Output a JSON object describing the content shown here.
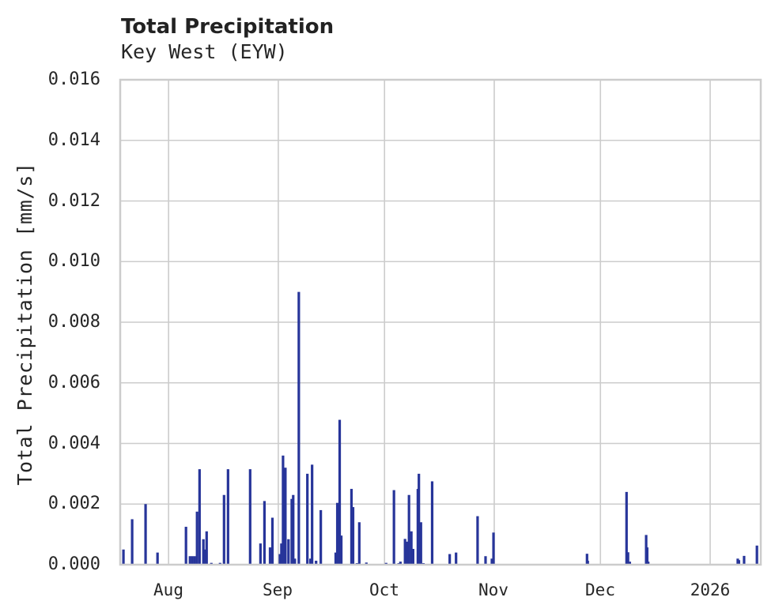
{
  "chart_data": {
    "type": "bar",
    "title": "Total Precipitation",
    "subtitle": "Key West (EYW)",
    "xlabel": "",
    "ylabel": "Total Precipitation [mm/s]",
    "ylim": [
      0,
      0.016
    ],
    "xlim": [
      "2025-07-18T08:00",
      "2026-01-15T07:00"
    ],
    "grid": true,
    "legend": null,
    "color": "#27359a",
    "grid_color": "#cccccc",
    "y_ticks": [
      "0.000",
      "0.002",
      "0.004",
      "0.006",
      "0.008",
      "0.010",
      "0.012",
      "0.014",
      "0.016"
    ],
    "y_tick_values": [
      0,
      0.002,
      0.004,
      0.006,
      0.008,
      0.01,
      0.012,
      0.014,
      0.016
    ],
    "x_ticks": [
      {
        "label": "Aug",
        "date": "2025-08-01T00:00"
      },
      {
        "label": "Sep",
        "date": "2025-09-01T00:00"
      },
      {
        "label": "Oct",
        "date": "2025-10-01T00:00"
      },
      {
        "label": "Nov",
        "date": "2025-11-01T00:00"
      },
      {
        "label": "Dec",
        "date": "2025-12-01T00:00"
      },
      {
        "label": "2026",
        "date": "2026-01-01T00:00"
      }
    ],
    "series": [
      {
        "name": "Total Precipitation",
        "points": [
          {
            "t": "2025-07-19T06:00",
            "v": 0.0005
          },
          {
            "t": "2025-07-21T17:00",
            "v": 0.0015
          },
          {
            "t": "2025-07-25T12:00",
            "v": 0.002
          },
          {
            "t": "2025-07-28T21:00",
            "v": 0.0004
          },
          {
            "t": "2025-08-05T22:00",
            "v": 0.00125
          },
          {
            "t": "2025-08-07T01:00",
            "v": 0.00028
          },
          {
            "t": "2025-08-07T17:00",
            "v": 0.00028
          },
          {
            "t": "2025-08-08T09:00",
            "v": 0.00028
          },
          {
            "t": "2025-08-09T01:00",
            "v": 0.00175
          },
          {
            "t": "2025-08-09T18:00",
            "v": 0.00315
          },
          {
            "t": "2025-08-10T20:00",
            "v": 0.00084
          },
          {
            "t": "2025-08-11T07:00",
            "v": 0.0005
          },
          {
            "t": "2025-08-11T18:00",
            "v": 0.0011
          },
          {
            "t": "2025-08-13T02:00",
            "v": 6e-05
          },
          {
            "t": "2025-08-15T13:00",
            "v": 6e-05
          },
          {
            "t": "2025-08-16T16:00",
            "v": 0.0023
          },
          {
            "t": "2025-08-17T19:00",
            "v": 0.00315
          },
          {
            "t": "2025-08-24T01:00",
            "v": 0.00315
          },
          {
            "t": "2025-08-26T23:00",
            "v": 0.0007
          },
          {
            "t": "2025-08-28T02:00",
            "v": 0.0021
          },
          {
            "t": "2025-08-29T16:00",
            "v": 0.00057
          },
          {
            "t": "2025-08-30T08:00",
            "v": 0.00155
          },
          {
            "t": "2025-09-01T11:00",
            "v": 0.00035
          },
          {
            "t": "2025-09-01T21:00",
            "v": 0.0007
          },
          {
            "t": "2025-09-02T08:00",
            "v": 0.0036
          },
          {
            "t": "2025-09-03T00:00",
            "v": 0.0032
          },
          {
            "t": "2025-09-03T21:00",
            "v": 0.00084
          },
          {
            "t": "2025-09-04T19:00",
            "v": 0.00217
          },
          {
            "t": "2025-09-05T05:00",
            "v": 0.0023
          },
          {
            "t": "2025-09-05T16:00",
            "v": 0.0002
          },
          {
            "t": "2025-09-06T19:00",
            "v": 0.009
          },
          {
            "t": "2025-09-09T05:00",
            "v": 0.003
          },
          {
            "t": "2025-09-10T02:00",
            "v": 0.0002
          },
          {
            "t": "2025-09-10T13:00",
            "v": 0.0033
          },
          {
            "t": "2025-09-11T16:00",
            "v": 0.00013
          },
          {
            "t": "2025-09-13T00:00",
            "v": 0.0018
          },
          {
            "t": "2025-09-17T05:00",
            "v": 0.0004
          },
          {
            "t": "2025-09-17T16:00",
            "v": 0.00204
          },
          {
            "t": "2025-09-18T08:00",
            "v": 0.00478
          },
          {
            "t": "2025-09-18T19:00",
            "v": 0.00096
          },
          {
            "t": "2025-09-21T16:00",
            "v": 0.0025
          },
          {
            "t": "2025-09-22T03:00",
            "v": 0.0019
          },
          {
            "t": "2025-09-23T05:00",
            "v": 5e-05
          },
          {
            "t": "2025-09-23T21:00",
            "v": 0.0014
          },
          {
            "t": "2025-09-25T21:00",
            "v": 7e-05
          },
          {
            "t": "2025-10-01T11:00",
            "v": 6e-05
          },
          {
            "t": "2025-10-03T16:00",
            "v": 0.00246
          },
          {
            "t": "2025-10-05T00:00",
            "v": 5e-05
          },
          {
            "t": "2025-10-05T12:00",
            "v": 0.0001
          },
          {
            "t": "2025-10-06T19:00",
            "v": 0.00085
          },
          {
            "t": "2025-10-07T07:00",
            "v": 0.00076
          },
          {
            "t": "2025-10-07T22:00",
            "v": 0.0023
          },
          {
            "t": "2025-10-08T14:00",
            "v": 0.0011
          },
          {
            "t": "2025-10-09T02:00",
            "v": 0.00052
          },
          {
            "t": "2025-10-10T10:00",
            "v": 0.0025
          },
          {
            "t": "2025-10-10T17:00",
            "v": 0.003
          },
          {
            "t": "2025-10-11T07:00",
            "v": 0.0014
          },
          {
            "t": "2025-10-12T00:00",
            "v": 5e-05
          },
          {
            "t": "2025-10-14T11:00",
            "v": 0.00275
          },
          {
            "t": "2025-10-19T10:00",
            "v": 0.00035
          },
          {
            "t": "2025-10-21T05:00",
            "v": 0.0004
          },
          {
            "t": "2025-10-27T07:00",
            "v": 0.0016
          },
          {
            "t": "2025-10-29T13:00",
            "v": 0.00028
          },
          {
            "t": "2025-10-31T08:00",
            "v": 0.0002
          },
          {
            "t": "2025-10-31T19:00",
            "v": 0.00106
          },
          {
            "t": "2025-11-27T05:00",
            "v": 0.00036
          },
          {
            "t": "2025-11-27T10:00",
            "v": 0.00013
          },
          {
            "t": "2025-12-08T09:00",
            "v": 0.0024
          },
          {
            "t": "2025-12-08T19:00",
            "v": 0.00041
          },
          {
            "t": "2025-12-09T07:00",
            "v": 0.0001
          },
          {
            "t": "2025-12-13T22:00",
            "v": 0.00098
          },
          {
            "t": "2025-12-14T05:00",
            "v": 0.00057
          },
          {
            "t": "2025-12-14T12:00",
            "v": 0.0001
          },
          {
            "t": "2026-01-08T19:00",
            "v": 0.0002
          },
          {
            "t": "2026-01-09T03:00",
            "v": 0.00015
          },
          {
            "t": "2026-01-10T14:00",
            "v": 0.00029
          },
          {
            "t": "2026-01-14T05:00",
            "v": 0.00063
          }
        ]
      }
    ]
  }
}
